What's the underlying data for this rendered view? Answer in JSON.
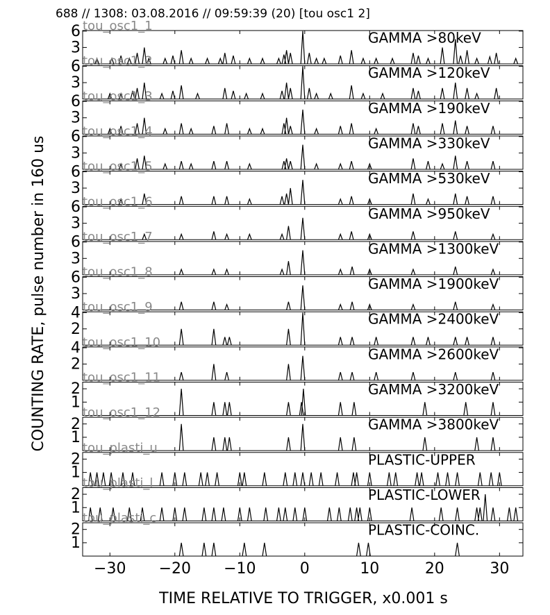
{
  "chart_data": {
    "type": "spike",
    "title": "688 // 1308:   03.08.2016 // 09:59:39 (20)  [tou osc1 2]",
    "xlabel": "TIME RELATIVE TO TRIGGER,   x0.001 s",
    "ylabel": "COUNTING RATE,    pulse number in 160 us",
    "xlim": [
      -34.2,
      33.6
    ],
    "xticks": [
      {
        "value": -30,
        "label": "−30"
      },
      {
        "value": -20,
        "label": "−20"
      },
      {
        "value": -10,
        "label": "−10"
      },
      0,
      10,
      20,
      30
    ],
    "color": "#000000",
    "panels": [
      {
        "name": "tou_osc1_1",
        "label": "GAMMA >80keV",
        "ylim": [
          0,
          6.1
        ],
        "yticks": [
          3,
          6
        ],
        "x": [
          -32,
          -29.7,
          -28.3,
          -27,
          -25.8,
          -24.7,
          -24,
          -21.5,
          -20.3,
          -19,
          -17.5,
          -15,
          -13,
          -12.3,
          -11,
          -8.5,
          -6.5,
          -4,
          -3.2,
          -2.8,
          -2.2,
          -0.3,
          0.7,
          1.8,
          3,
          5.5,
          7.2,
          9,
          11,
          13.5,
          16.7,
          17.5,
          19,
          21.2,
          23.2,
          24,
          25,
          26.5,
          28.5,
          29.5,
          32.5
        ],
        "values": [
          1,
          1,
          1.5,
          1,
          2,
          3,
          1,
          1,
          1.5,
          2.5,
          1,
          1,
          1,
          2,
          1.5,
          1,
          1,
          1,
          1.7,
          2.5,
          2,
          6,
          2,
          1,
          1,
          1.5,
          2.5,
          1,
          1,
          1,
          2,
          1.5,
          1,
          3,
          4.5,
          1.5,
          2.5,
          1,
          1.3,
          2,
          1
        ]
      },
      {
        "name": "tou_osc1_2",
        "label": "GAMMA >120keV",
        "ylim": [
          0,
          6.1
        ],
        "yticks": [
          3,
          6
        ],
        "x": [
          -30,
          -28.3,
          -26.5,
          -25.8,
          -24.7,
          -22,
          -20.3,
          -19,
          -16.5,
          -12.3,
          -11,
          -9,
          -6.5,
          -3.5,
          -2.8,
          -2.2,
          -0.3,
          0.7,
          1.8,
          4,
          7.2,
          9,
          12,
          16.7,
          17.5,
          21.2,
          23.2,
          25,
          26.5,
          29.5
        ],
        "values": [
          1,
          1,
          1.5,
          2,
          3,
          1,
          1.5,
          2.5,
          1,
          2,
          1.5,
          1,
          1,
          1.5,
          3,
          2,
          6,
          2,
          1,
          1,
          2.5,
          1,
          1,
          2,
          1.5,
          2,
          3,
          2,
          1,
          2
        ]
      },
      {
        "name": "tou_osc1_3",
        "label": "GAMMA >190keV",
        "ylim": [
          0,
          6.1
        ],
        "yticks": [
          3,
          6
        ],
        "x": [
          -30,
          -28.3,
          -25.8,
          -24.7,
          -21.5,
          -19,
          -17.5,
          -14,
          -12,
          -8.5,
          -6.5,
          -3.2,
          -2.8,
          -2.2,
          -0.3,
          1.8,
          5.5,
          7.2,
          11,
          16.7,
          17.5,
          21.2,
          23.2,
          25,
          29
        ],
        "values": [
          1,
          1.5,
          2,
          3,
          1,
          2,
          1,
          1.5,
          2,
          1,
          1,
          2,
          3,
          1.5,
          4.5,
          1,
          1.5,
          2,
          1,
          2,
          1.5,
          2,
          2.5,
          1.5,
          1.5
        ]
      },
      {
        "name": "tou_osc1_4",
        "label": "GAMMA >330keV",
        "ylim": [
          0,
          6.1
        ],
        "yticks": [
          3,
          6
        ],
        "x": [
          -28.3,
          -25.8,
          -24.7,
          -21.5,
          -19,
          -17.5,
          -14,
          -12,
          -8.5,
          -3.2,
          -2.8,
          -2.2,
          -0.3,
          1.8,
          5.5,
          7.2,
          10,
          16.7,
          19,
          21.2,
          23.2,
          25,
          29
        ],
        "values": [
          1,
          2,
          2.5,
          1,
          1.5,
          1,
          1.5,
          1.5,
          1,
          1.5,
          2,
          1.5,
          4.5,
          1,
          1,
          1.5,
          1,
          2,
          1.5,
          1,
          2.5,
          1.5,
          1.5
        ]
      },
      {
        "name": "tou_osc1_5",
        "label": "GAMMA >530keV",
        "ylim": [
          0,
          6.1
        ],
        "yticks": [
          3,
          6
        ],
        "x": [
          -28.3,
          -24.7,
          -19,
          -14,
          -12,
          -8.5,
          -3.5,
          -2.8,
          -2.2,
          -0.3,
          5.5,
          7.2,
          10,
          16.7,
          19,
          23.2,
          25,
          29
        ],
        "values": [
          1,
          2,
          1.5,
          1.5,
          1.5,
          1,
          1.5,
          2,
          3,
          4.5,
          1,
          1.5,
          1,
          2,
          1,
          2,
          1.5,
          1.5
        ]
      },
      {
        "name": "tou_osc1_6",
        "label": "GAMMA >950keV",
        "ylim": [
          0,
          6.1
        ],
        "yticks": [
          3,
          6
        ],
        "x": [
          -24.7,
          -19,
          -14,
          -12,
          -8.5,
          -3.5,
          -2.5,
          -0.3,
          5.5,
          7.2,
          10,
          16.7,
          23.2,
          29
        ],
        "values": [
          1,
          1,
          1.5,
          1,
          1,
          1,
          2.5,
          4,
          1,
          1.5,
          1,
          1.5,
          1.5,
          1
        ]
      },
      {
        "name": "tou_osc1_7",
        "label": "GAMMA >1300keV",
        "ylim": [
          0,
          6.1
        ],
        "yticks": [
          3,
          6
        ],
        "x": [
          -19,
          -14,
          -12,
          -3.5,
          -2.5,
          -0.3,
          5.5,
          7.3,
          10,
          16.7,
          23.2,
          29
        ],
        "values": [
          1,
          1,
          1,
          1,
          2.5,
          4.5,
          1,
          1.5,
          1,
          1,
          1.5,
          1
        ]
      },
      {
        "name": "tou_osc1_8",
        "label": "GAMMA >1900keV",
        "ylim": [
          0,
          6.1
        ],
        "yticks": [
          3,
          6
        ],
        "x": [
          -19,
          -14,
          -12,
          -2.5,
          -0.3,
          5.5,
          7.3,
          10,
          16.7,
          23.2,
          29
        ],
        "values": [
          1.5,
          1.5,
          1,
          1.5,
          4.5,
          1,
          1.5,
          1,
          1,
          1.5,
          1
        ]
      },
      {
        "name": "tou_osc1_9",
        "label": "GAMMA >2400keV",
        "ylim": [
          0,
          4.1
        ],
        "yticks": [
          2,
          4
        ],
        "x": [
          -19,
          -14,
          -12.3,
          -11.6,
          -2.5,
          -0.3,
          5.5,
          7.3,
          11,
          16.7,
          19,
          23.2,
          25,
          29
        ],
        "values": [
          2,
          2,
          1,
          1,
          2,
          4,
          1,
          1,
          1,
          1,
          1,
          1,
          1,
          1
        ]
      },
      {
        "name": "tou_osc1_10",
        "label": "GAMMA >2600keV",
        "ylim": [
          0,
          4.1
        ],
        "yticks": [
          2,
          4
        ],
        "x": [
          -19,
          -14,
          -12,
          -2.5,
          -0.3,
          5.5,
          7.3,
          11,
          16.7,
          23.2,
          29
        ],
        "values": [
          1,
          2,
          1,
          2,
          3,
          1,
          1,
          1,
          1,
          1,
          1
        ]
      },
      {
        "name": "tou_osc1_11",
        "label": "GAMMA >3200keV",
        "ylim": [
          0,
          2.5
        ],
        "yticks": [
          1,
          2
        ],
        "x": [
          -19,
          -14,
          -12.3,
          -11.6,
          -2.5,
          -0.5,
          -0.2,
          5.5,
          7.6,
          18.5,
          24.8,
          29
        ],
        "values": [
          2,
          1,
          1,
          1,
          1,
          1,
          2,
          1,
          1,
          1,
          1,
          1
        ]
      },
      {
        "name": "tou_osc1_12",
        "label": "GAMMA >3800keV",
        "ylim": [
          0,
          2.5
        ],
        "yticks": [
          1,
          2
        ],
        "x": [
          -19,
          -14,
          -12.3,
          -11.6,
          -2.5,
          -0.3,
          5.5,
          7.6,
          18.5,
          26.5,
          29
        ],
        "values": [
          2,
          1,
          1,
          1,
          1,
          2,
          1,
          1,
          1,
          1,
          1
        ]
      },
      {
        "name": "tou_plasti_u",
        "label": "PLASTIC-UPPER",
        "ylim": [
          0,
          2.5
        ],
        "yticks": [
          1,
          2
        ],
        "x": [
          -33,
          -32,
          -31,
          -29.8,
          -28,
          -26.5,
          -22,
          -20,
          -18.5,
          -16,
          -15,
          -13.5,
          -10,
          -9.3,
          -6.2,
          -3,
          -1.5,
          -0.3,
          1,
          2.5,
          5,
          7.5,
          8,
          10,
          13,
          14,
          17.3,
          18,
          20.5,
          22,
          23.5,
          27,
          28.7,
          30
        ],
        "values": [
          1,
          1,
          1,
          1,
          1,
          1,
          1,
          1,
          1,
          1,
          1,
          1,
          1,
          1,
          1,
          1,
          1,
          1,
          1,
          1,
          1,
          1,
          1,
          1,
          1,
          1,
          1,
          1,
          1,
          1,
          1,
          1,
          1,
          1
        ]
      },
      {
        "name": "tou_plasti_l",
        "label": "PLASTIC-LOWER",
        "ylim": [
          0,
          2.5
        ],
        "yticks": [
          1,
          2
        ],
        "x": [
          -33,
          -31.5,
          -29.5,
          -27,
          -25,
          -22,
          -20,
          -18.5,
          -15.5,
          -14,
          -12.5,
          -10,
          -8.5,
          -6,
          -4,
          -3,
          -1.5,
          0,
          3.8,
          5.3,
          7,
          8,
          8.5,
          10,
          16.5,
          21,
          23.5,
          26.5,
          27,
          27.8,
          29,
          31.5,
          32.5
        ],
        "values": [
          1,
          1,
          1,
          1,
          1,
          1,
          1,
          1,
          1,
          1,
          1,
          1,
          1,
          1,
          1,
          1,
          1,
          1,
          1,
          1,
          1,
          1,
          1,
          1,
          1,
          1,
          1,
          1,
          1,
          2,
          1,
          1,
          1
        ]
      },
      {
        "name": "tou_plasti_c",
        "label": "PLASTIC-COINC.",
        "ylim": [
          0,
          2.5
        ],
        "yticks": [
          1,
          2
        ],
        "x": [
          -19,
          -15.5,
          -14,
          -9.3,
          -6.2,
          8.3,
          9.8,
          23.5
        ],
        "values": [
          1,
          1,
          1,
          1,
          1,
          1,
          1,
          1
        ]
      }
    ]
  }
}
